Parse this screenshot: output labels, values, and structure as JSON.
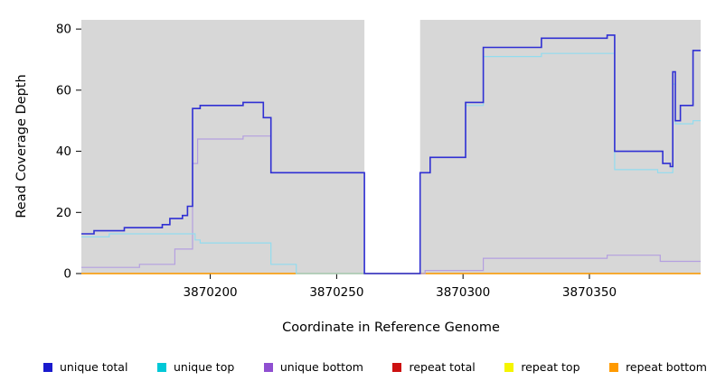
{
  "chart_data": {
    "type": "line",
    "title": "",
    "xlabel": "Coordinate in Reference Genome",
    "ylabel": "Read Coverage Depth",
    "xlim": [
      3870149,
      3870394
    ],
    "ylim": [
      0,
      83
    ],
    "x_ticks": [
      3870200,
      3870250,
      3870300,
      3870350
    ],
    "y_ticks": [
      0,
      20,
      40,
      60,
      80
    ],
    "grid": false,
    "legend_position": "bottom",
    "background_color": "#ffffff",
    "shaded_region_color": "#d7d7d7",
    "shaded_regions": [
      {
        "x0": 3870149,
        "x1": 3870261
      },
      {
        "x0": 3870283,
        "x1": 3870394
      }
    ],
    "step": true,
    "series": [
      {
        "name": "unique total",
        "legend_color": "#1a1acd",
        "line_color": "#2f2fd3",
        "line_width": 1.6,
        "points": [
          [
            3870149,
            13
          ],
          [
            3870154,
            14
          ],
          [
            3870166,
            15
          ],
          [
            3870181,
            16
          ],
          [
            3870184,
            18
          ],
          [
            3870189,
            19
          ],
          [
            3870191,
            22
          ],
          [
            3870193,
            54
          ],
          [
            3870196,
            55
          ],
          [
            3870213,
            56
          ],
          [
            3870221,
            51
          ],
          [
            3870224,
            33
          ],
          [
            3870261,
            0
          ],
          [
            3870283,
            33
          ],
          [
            3870287,
            38
          ],
          [
            3870301,
            56
          ],
          [
            3870308,
            74
          ],
          [
            3870331,
            77
          ],
          [
            3870357,
            78
          ],
          [
            3870360,
            40
          ],
          [
            3870377,
            40
          ],
          [
            3870379,
            36
          ],
          [
            3870382,
            35
          ],
          [
            3870383,
            66
          ],
          [
            3870384,
            50
          ],
          [
            3870386,
            55
          ],
          [
            3870390,
            55
          ],
          [
            3870391,
            73
          ],
          [
            3870394,
            73
          ]
        ]
      },
      {
        "name": "unique top",
        "legend_color": "#00c8d7",
        "line_color": "#92dcef",
        "line_width": 1.2,
        "points": [
          [
            3870149,
            12
          ],
          [
            3870160,
            13
          ],
          [
            3870194,
            11
          ],
          [
            3870196,
            10
          ],
          [
            3870224,
            3
          ],
          [
            3870234,
            0
          ],
          [
            3870261,
            0
          ],
          [
            3870283,
            33
          ],
          [
            3870287,
            38
          ],
          [
            3870301,
            55
          ],
          [
            3870308,
            71
          ],
          [
            3870331,
            72
          ],
          [
            3870357,
            72
          ],
          [
            3870360,
            34
          ],
          [
            3870377,
            33
          ],
          [
            3870382,
            33
          ],
          [
            3870383,
            62
          ],
          [
            3870384,
            49
          ],
          [
            3870390,
            49
          ],
          [
            3870391,
            50
          ],
          [
            3870394,
            50
          ]
        ]
      },
      {
        "name": "unique bottom",
        "legend_color": "#8f4fd1",
        "line_color": "#b49fe0",
        "line_width": 1.2,
        "points": [
          [
            3870149,
            2
          ],
          [
            3870172,
            3
          ],
          [
            3870184,
            3
          ],
          [
            3870186,
            8
          ],
          [
            3870191,
            8
          ],
          [
            3870193,
            36
          ],
          [
            3870195,
            44
          ],
          [
            3870213,
            45
          ],
          [
            3870221,
            45
          ],
          [
            3870224,
            33
          ],
          [
            3870261,
            0
          ],
          [
            3870283,
            0
          ],
          [
            3870285,
            1
          ],
          [
            3870306,
            1
          ],
          [
            3870308,
            5
          ],
          [
            3870355,
            5
          ],
          [
            3870357,
            6
          ],
          [
            3870375,
            6
          ],
          [
            3870378,
            4
          ],
          [
            3870394,
            4
          ]
        ]
      },
      {
        "name": "repeat total",
        "legend_color": "#cc1111",
        "line_color": "#cc1111",
        "line_width": 1.2,
        "points": [
          [
            3870149,
            0
          ],
          [
            3870394,
            0
          ]
        ]
      },
      {
        "name": "repeat top",
        "legend_color": "#f5f500",
        "line_color": "#f5f500",
        "line_width": 1.2,
        "points": [
          [
            3870149,
            0
          ],
          [
            3870394,
            0
          ]
        ]
      },
      {
        "name": "repeat bottom",
        "legend_color": "#ff9a00",
        "line_color": "#ff9a00",
        "line_width": 1.2,
        "points": [
          [
            3870149,
            0
          ],
          [
            3870394,
            0
          ]
        ]
      }
    ]
  }
}
